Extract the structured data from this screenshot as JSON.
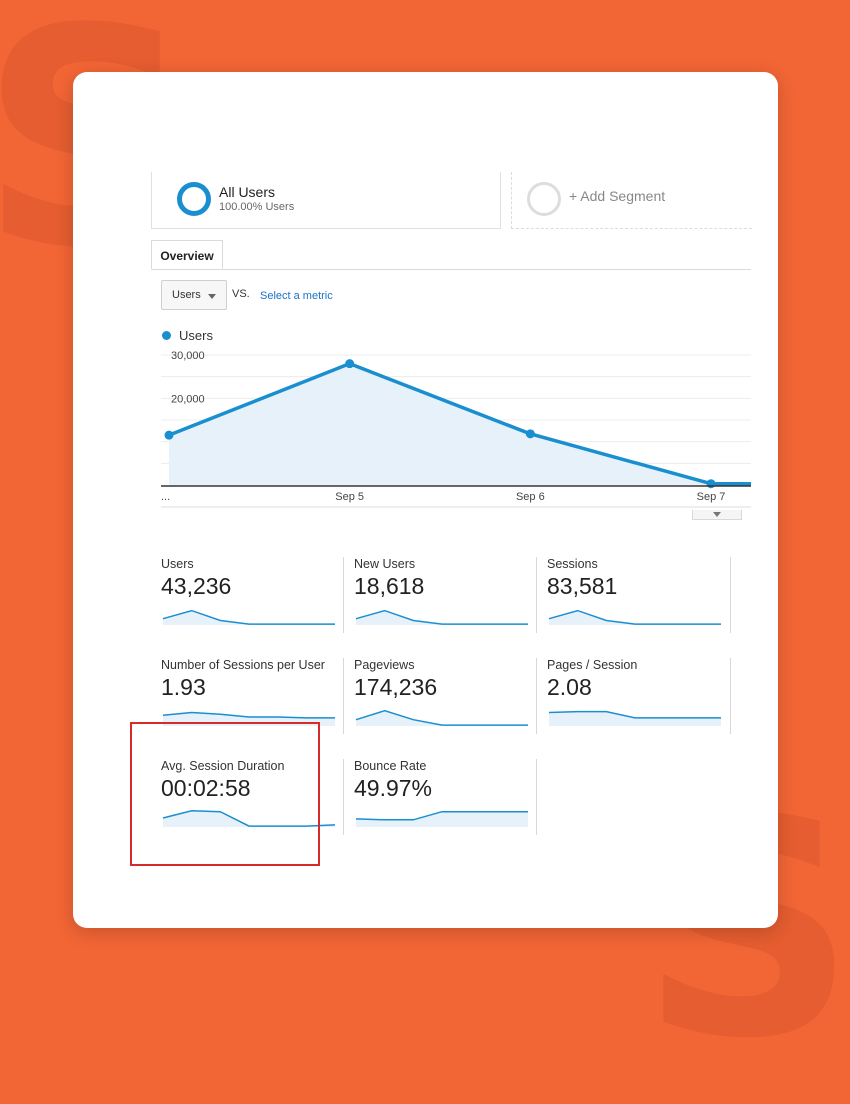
{
  "segments": {
    "active": {
      "name": "All Users",
      "percent": "100.00% Users"
    },
    "add_label": "+ Add Segment"
  },
  "tabs": [
    {
      "label": "Overview"
    }
  ],
  "metric_selector": {
    "value": "Users",
    "vs": "VS.",
    "select_label": "Select a metric"
  },
  "colors": {
    "accent": "#1a8fd0",
    "background": "#f26535",
    "highlight": "#d62b2b"
  },
  "chart_data": {
    "type": "area",
    "legend": "Users",
    "x": [
      "...",
      "Sep 5",
      "Sep 6",
      "Sep 7"
    ],
    "series": [
      {
        "name": "Users",
        "values": [
          11500,
          28000,
          11800,
          300
        ]
      }
    ],
    "yticks": [
      "30,000",
      "20,000",
      "10,000"
    ],
    "ylim": [
      0,
      30000
    ],
    "grid": true,
    "legend_position": "top-left"
  },
  "stats": [
    {
      "label": "Users",
      "value": "43,236",
      "spark": [
        0.35,
        0.8,
        0.25,
        0.05,
        0.05,
        0.05,
        0.05
      ]
    },
    {
      "label": "New Users",
      "value": "18,618",
      "spark": [
        0.35,
        0.8,
        0.25,
        0.05,
        0.05,
        0.05,
        0.05
      ]
    },
    {
      "label": "Sessions",
      "value": "83,581",
      "spark": [
        0.35,
        0.8,
        0.25,
        0.05,
        0.05,
        0.05,
        0.05
      ]
    },
    {
      "label": "Number of Sessions per User",
      "value": "1.93",
      "spark": [
        0.6,
        0.75,
        0.65,
        0.5,
        0.5,
        0.45,
        0.45
      ]
    },
    {
      "label": "Pageviews",
      "value": "174,236",
      "spark": [
        0.35,
        0.85,
        0.35,
        0.05,
        0.05,
        0.05,
        0.05
      ]
    },
    {
      "label": "Pages / Session",
      "value": "2.08",
      "spark": [
        0.75,
        0.8,
        0.8,
        0.45,
        0.45,
        0.45,
        0.45
      ]
    },
    {
      "label": "Avg. Session Duration",
      "value": "00:02:58",
      "spark": [
        0.5,
        0.9,
        0.85,
        0.05,
        0.05,
        0.05,
        0.12
      ]
    },
    {
      "label": "Bounce Rate",
      "value": "49.97%",
      "spark": [
        0.45,
        0.4,
        0.4,
        0.85,
        0.85,
        0.85,
        0.85
      ]
    }
  ]
}
